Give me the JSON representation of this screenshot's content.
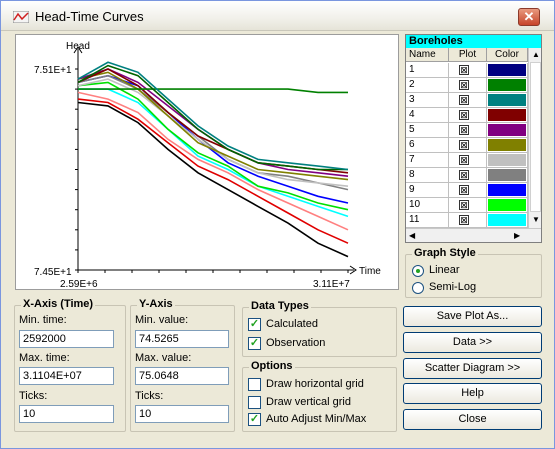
{
  "window": {
    "title": "Head-Time Curves",
    "close_label": "✕"
  },
  "chart_data": {
    "type": "line",
    "ylabel": "Head",
    "xlabel": "Time",
    "y_max_label": "7.51E+1",
    "y_min_label": "7.45E+1",
    "x_min_label": "2.59E+6",
    "x_max_label": "3.11E+7",
    "xlim": [
      2592000,
      31104000
    ],
    "ylim": [
      74.5,
      75.1
    ],
    "x": [
      2592000,
      5760000,
      8928000,
      12096000,
      15264000,
      18432000,
      21600000,
      24768000,
      27936000,
      31104000
    ],
    "series": [
      {
        "values": [
          75.0,
          74.99,
          74.94,
          74.86,
          74.79,
          74.74,
          74.69,
          74.64,
          74.58,
          74.54
        ],
        "color": "#000000"
      },
      {
        "values": [
          75.01,
          75.0,
          74.95,
          74.88,
          74.81,
          74.77,
          74.72,
          74.67,
          74.62,
          74.58
        ],
        "color": "#e00000"
      },
      {
        "values": [
          75.03,
          75.01,
          74.97,
          74.89,
          74.83,
          74.79,
          74.74,
          74.7,
          74.66,
          74.62
        ],
        "color": "#ff8080"
      },
      {
        "values": [
          75.04,
          75.04,
          75.0,
          74.92,
          74.84,
          74.8,
          74.75,
          74.72,
          74.69,
          74.66
        ],
        "color": "#00ffff"
      },
      {
        "values": [
          75.05,
          75.06,
          75.01,
          74.92,
          74.85,
          74.81,
          74.75,
          74.73,
          74.7,
          74.68
        ],
        "color": "#00e000"
      },
      {
        "values": [
          75.06,
          75.08,
          75.05,
          74.97,
          74.89,
          74.82,
          74.78,
          74.75,
          74.72,
          74.7
        ],
        "color": "#0000ff"
      },
      {
        "values": [
          75.06,
          75.08,
          75.04,
          74.97,
          74.9,
          74.83,
          74.79,
          74.78,
          74.76,
          74.74
        ],
        "color": "#808080"
      },
      {
        "values": [
          75.05,
          75.07,
          75.03,
          74.96,
          74.89,
          74.83,
          74.79,
          74.77,
          74.76,
          74.75
        ],
        "color": "#c0c0c0"
      },
      {
        "values": [
          75.07,
          75.09,
          75.04,
          74.96,
          74.88,
          74.84,
          74.8,
          74.79,
          74.78,
          74.77
        ],
        "color": "#808000"
      },
      {
        "values": [
          75.07,
          75.1,
          75.06,
          74.99,
          74.92,
          74.86,
          74.82,
          74.8,
          74.79,
          74.78
        ],
        "color": "#800080"
      },
      {
        "values": [
          75.06,
          75.1,
          75.05,
          74.97,
          74.9,
          74.86,
          74.82,
          74.81,
          74.8,
          74.79
        ],
        "color": "#800000"
      },
      {
        "values": [
          75.04,
          75.04,
          75.04,
          75.04,
          75.04,
          75.04,
          75.04,
          75.04,
          75.03,
          75.03
        ],
        "color": "#008000"
      },
      {
        "values": [
          75.06,
          75.11,
          75.08,
          75.0,
          74.92,
          74.86,
          74.82,
          74.81,
          74.8,
          74.8
        ],
        "color": "#006400"
      },
      {
        "values": [
          75.07,
          75.12,
          75.09,
          75.01,
          74.93,
          74.87,
          74.83,
          74.82,
          74.81,
          74.8
        ],
        "color": "#008080"
      }
    ]
  },
  "boreholes": {
    "title": "Boreholes",
    "headers": [
      "Name",
      "Plot",
      "Color"
    ],
    "rows": [
      {
        "name": "1",
        "color": "#000080"
      },
      {
        "name": "2",
        "color": "#008000"
      },
      {
        "name": "3",
        "color": "#008080"
      },
      {
        "name": "4",
        "color": "#800000"
      },
      {
        "name": "5",
        "color": "#800080"
      },
      {
        "name": "6",
        "color": "#808000"
      },
      {
        "name": "7",
        "color": "#c0c0c0"
      },
      {
        "name": "8",
        "color": "#808080"
      },
      {
        "name": "9",
        "color": "#0000ff"
      },
      {
        "name": "10",
        "color": "#00ff00"
      },
      {
        "name": "11",
        "color": "#00ffff"
      }
    ],
    "plot_mark": "⊠"
  },
  "graph_style": {
    "title": "Graph Style",
    "linear_label": "Linear",
    "semilog_label": "Semi-Log",
    "selected": "Linear"
  },
  "x_axis": {
    "title": "X-Axis (Time)",
    "min_label": "Min. time:",
    "min_value": "2592000",
    "max_label": "Max. time:",
    "max_value": "3.1104E+07",
    "ticks_label": "Ticks:",
    "ticks_value": "10"
  },
  "y_axis": {
    "title": "Y-Axis",
    "min_label": "Min. value:",
    "min_value": "74.5265",
    "max_label": "Max. value:",
    "max_value": "75.0648",
    "ticks_label": "Ticks:",
    "ticks_value": "10"
  },
  "data_types": {
    "title": "Data Types",
    "calculated_label": "Calculated",
    "calculated": true,
    "observation_label": "Observation",
    "observation": true
  },
  "options": {
    "title": "Options",
    "hgrid_label": "Draw horizontal grid",
    "hgrid": false,
    "vgrid_label": "Draw vertical grid",
    "vgrid": false,
    "auto_label": "Auto Adjust Min/Max",
    "auto": true
  },
  "buttons": {
    "save_plot": "Save Plot As...",
    "data": "Data >>",
    "scatter": "Scatter Diagram >>",
    "help": "Help",
    "close": "Close"
  },
  "check_mark": "✓"
}
